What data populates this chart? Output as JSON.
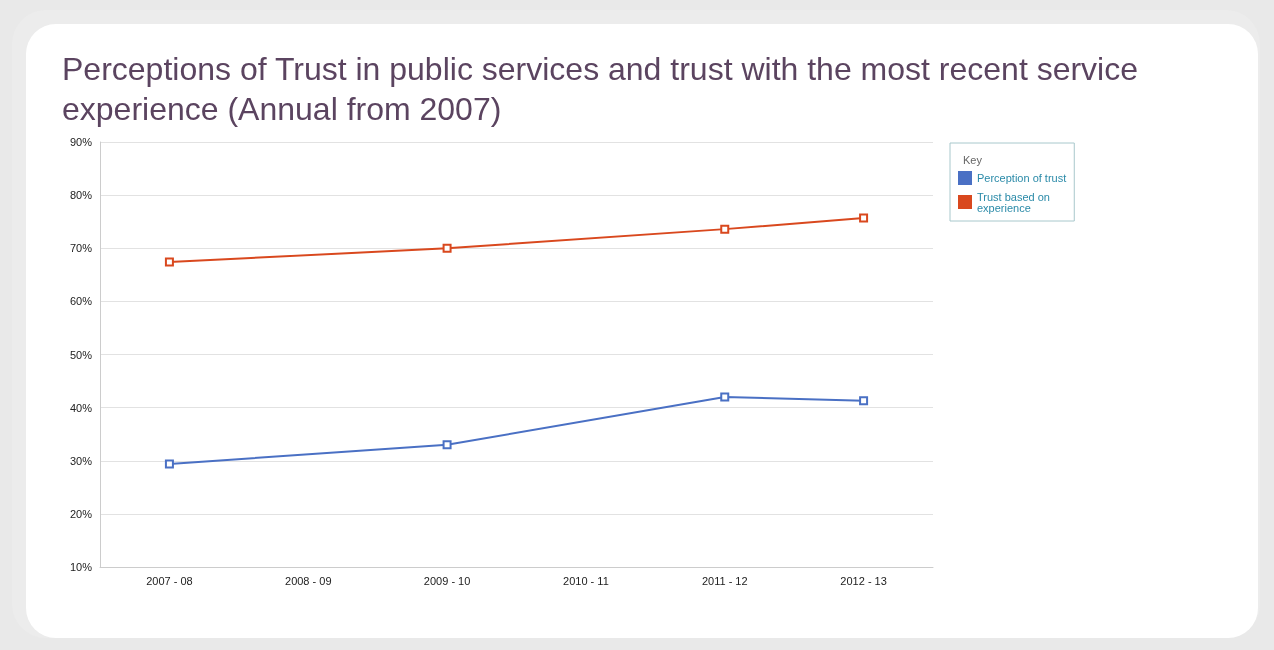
{
  "chart_data": {
    "type": "line",
    "title": "Perceptions of Trust in public services and trust with the most recent service experience (Annual from 2007)",
    "legend_title": "Key",
    "categories": [
      "2007 - 08",
      "2008 - 09",
      "2009 - 10",
      "2010 - 11",
      "2011 - 12",
      "2012 - 13"
    ],
    "series": [
      {
        "name": "Perception of trust",
        "color": "#4a70c4",
        "values": [
          29.4,
          null,
          33,
          null,
          42,
          41.3
        ]
      },
      {
        "name": "Trust based on experience",
        "color": "#d9481e",
        "values": [
          67.4,
          null,
          70,
          null,
          73.6,
          75.7
        ]
      }
    ],
    "ylim": [
      10,
      90
    ],
    "yticks": [
      {
        "value": 10,
        "label": "10%"
      },
      {
        "value": 20,
        "label": "20%"
      },
      {
        "value": 30,
        "label": "30%"
      },
      {
        "value": 40,
        "label": "40%"
      },
      {
        "value": 50,
        "label": "50%"
      },
      {
        "value": 60,
        "label": "60%"
      },
      {
        "value": 70,
        "label": "70%"
      },
      {
        "value": 80,
        "label": "80%"
      },
      {
        "value": 90,
        "label": "90%"
      }
    ],
    "grid": "y",
    "legend": "right",
    "marker": "square",
    "line_style": "solid"
  }
}
